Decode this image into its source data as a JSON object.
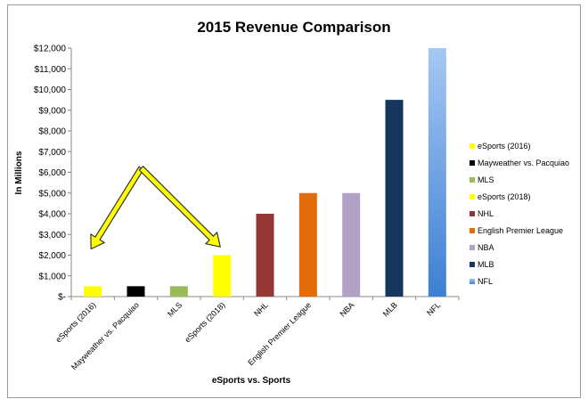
{
  "chart_data": {
    "type": "bar",
    "title": "2015 Revenue Comparison",
    "xlabel": "eSports vs. Sports",
    "ylabel": "In Millions",
    "ylim": [
      0,
      12000
    ],
    "yticks": [
      0,
      1000,
      2000,
      3000,
      4000,
      5000,
      6000,
      7000,
      8000,
      9000,
      10000,
      11000,
      12000
    ],
    "ytick_labels": [
      "$-",
      "$1,000",
      "$2,000",
      "$3,000",
      "$4,000",
      "$5,000",
      "$6,000",
      "$7,000",
      "$8,000",
      "$9,000",
      "$10,000",
      "$11,000",
      "$12,000"
    ],
    "grid": false,
    "legend_position": "right",
    "categories": [
      "eSports (2016)",
      "Mayweather vs. Pacquiao",
      "MLS",
      "eSports (2018)",
      "NHL",
      "English Premier League",
      "NBA",
      "MLB",
      "NFL"
    ],
    "values": [
      500,
      500,
      500,
      2000,
      4000,
      5000,
      5000,
      9500,
      12000
    ],
    "colors": [
      "#ffff00",
      "#000000",
      "#9bbb59",
      "#ffff00",
      "#943634",
      "#e36c0a",
      "#b2a1c7",
      "#17365d",
      "#4f81bd"
    ],
    "annotations": [
      {
        "type": "double-arrow",
        "color": "#ffff00",
        "apex_category": "Mayweather vs. Pacquiao",
        "apex_value": 6200,
        "left_end_category": "eSports (2016)",
        "left_end_value": 2300,
        "right_end_category": "eSports (2018)",
        "right_end_value": 2400
      }
    ]
  }
}
